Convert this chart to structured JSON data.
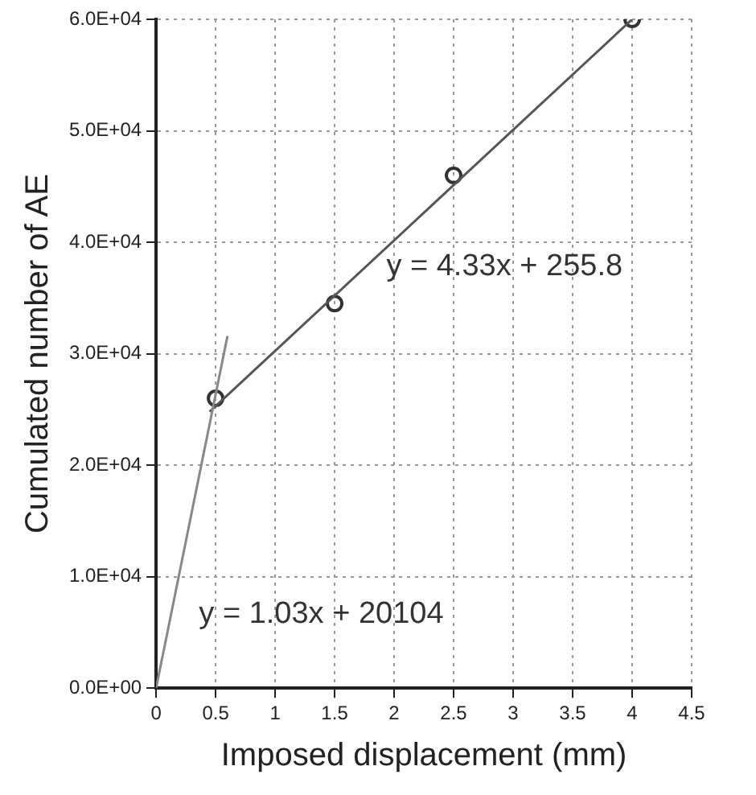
{
  "chart_data": {
    "type": "scatter",
    "xlabel": "Imposed displacement (mm)",
    "ylabel": "Cumulated number of AE",
    "xlim": [
      0,
      4.5
    ],
    "xticks": [
      0,
      0.5,
      1,
      1.5,
      2,
      2.5,
      3,
      3.5,
      4,
      4.5
    ],
    "ylim": [
      0,
      60000
    ],
    "yticks": [
      {
        "value": 0,
        "label": "0.0E+00"
      },
      {
        "value": 10000,
        "label": "1.0E+04"
      },
      {
        "value": 20000,
        "label": "2.0E+04"
      },
      {
        "value": 30000,
        "label": "3.0E+04"
      },
      {
        "value": 40000,
        "label": "4.0E+04"
      },
      {
        "value": 50000,
        "label": "5.0E+04"
      },
      {
        "value": 60000,
        "label": "6.0E+04"
      }
    ],
    "grid": true,
    "legend": false,
    "marker": "circle",
    "series": [
      {
        "type": "line",
        "color": "#888888",
        "x": [
          0,
          0.6
        ],
        "values": [
          0,
          31600
        ],
        "marker": "none"
      },
      {
        "type": "line",
        "color": "#555555",
        "x": [
          0.45,
          4.0
        ],
        "values": [
          24800,
          60000
        ],
        "marker": "none"
      },
      {
        "color": "#333333",
        "x": [
          0.5,
          1.5,
          2.5,
          4.0
        ],
        "values": [
          26000,
          34500,
          46000,
          60000
        ]
      }
    ],
    "annotations": [
      "y = 4.33x + 255.8",
      "y = 1.03x + 20104"
    ]
  }
}
